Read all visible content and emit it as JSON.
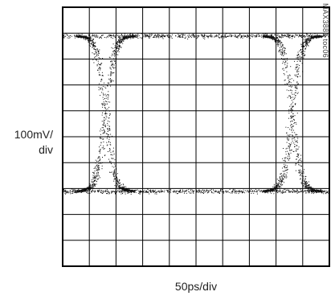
{
  "figure_id": "MAX3881 toc06",
  "chart_data": {
    "type": "eye-diagram",
    "title": "",
    "ylabel": "100mV/\ndiv",
    "xlabel": "50ps/div",
    "ylabel_lines": [
      "100mV/",
      "div"
    ],
    "grid": true,
    "grid_divisions": {
      "x": 10,
      "y": 10
    },
    "x_per_div_ps": 50,
    "y_per_div_mV": 100,
    "xlim_div": [
      0,
      10
    ],
    "ylim_div": [
      0,
      10
    ],
    "high_level_div": 1.1,
    "low_level_div": 7.1,
    "eye_crossings_div": [
      1.6,
      8.6
    ],
    "trace_color": "#111111",
    "grid_color": "#000000",
    "background": "#ffffff"
  }
}
